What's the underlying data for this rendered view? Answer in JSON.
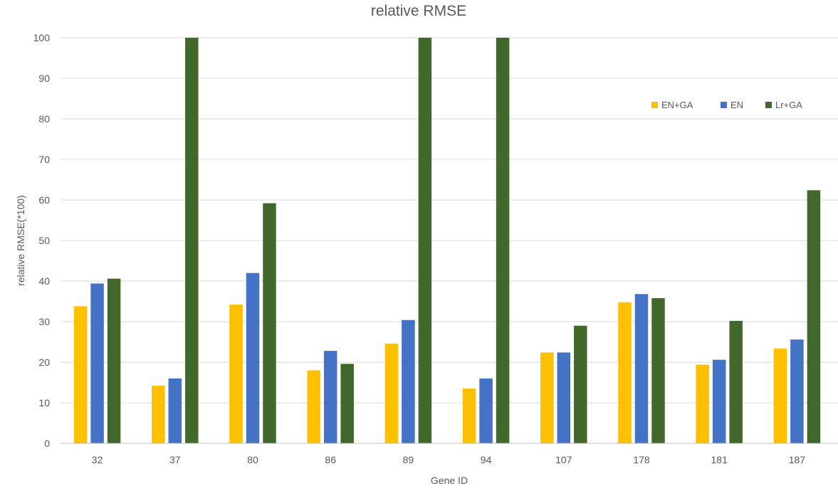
{
  "chart_data": {
    "type": "bar",
    "title": "relative RMSE",
    "xlabel": "Gene ID",
    "ylabel": "relative RMSE(*100)",
    "categories": [
      "32",
      "37",
      "80",
      "86",
      "89",
      "94",
      "107",
      "178",
      "181",
      "187"
    ],
    "series": [
      {
        "name": "EN+GA",
        "color": "#ffc000",
        "values": [
          33.8,
          14.2,
          34.2,
          18.0,
          24.6,
          13.5,
          22.4,
          34.8,
          19.4,
          23.4
        ]
      },
      {
        "name": "EN",
        "color": "#4472c4",
        "values": [
          39.4,
          16.0,
          42.0,
          22.8,
          30.4,
          16.0,
          22.4,
          36.8,
          20.6,
          25.6
        ]
      },
      {
        "name": "Lr+GA",
        "color": "#43682b",
        "values": [
          40.6,
          100,
          59.2,
          19.6,
          100,
          100,
          29.0,
          35.8,
          30.2,
          62.4
        ]
      }
    ],
    "ylim": [
      0,
      100
    ],
    "yticks": [
      "0",
      "10",
      "20",
      "30",
      "40",
      "50",
      "60",
      "70",
      "80",
      "90",
      "100"
    ],
    "grid": true,
    "legend_position": "top-right"
  }
}
